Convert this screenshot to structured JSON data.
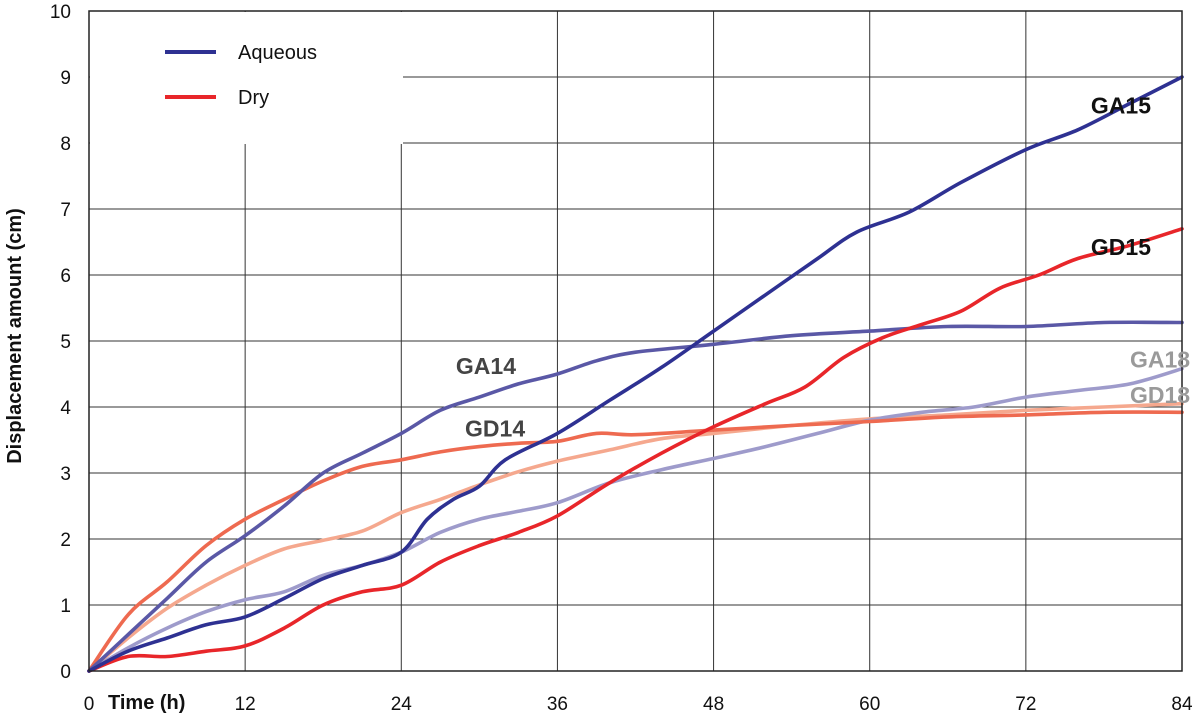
{
  "chart_data": {
    "type": "line",
    "xlabel": "Time (h)",
    "ylabel": "Displacement amount (cm)",
    "xlim": [
      0,
      84
    ],
    "ylim": [
      0,
      10
    ],
    "x_ticks": [
      0,
      12,
      24,
      36,
      48,
      60,
      72,
      84
    ],
    "y_ticks": [
      0,
      1,
      2,
      3,
      4,
      5,
      6,
      7,
      8,
      9,
      10
    ],
    "grid": true,
    "legend": {
      "position": "top-left",
      "entries": [
        {
          "label": "Aqueous",
          "color": "#2e3192"
        },
        {
          "label": "Dry",
          "color": "#e8262a"
        }
      ]
    },
    "series": [
      {
        "name": "GA15",
        "color": "#2e3192",
        "points": [
          [
            0,
            0
          ],
          [
            3,
            0.3
          ],
          [
            6,
            0.5
          ],
          [
            9,
            0.7
          ],
          [
            12,
            0.82
          ],
          [
            15,
            1.1
          ],
          [
            18,
            1.4
          ],
          [
            21,
            1.6
          ],
          [
            24,
            1.8
          ],
          [
            26,
            2.3
          ],
          [
            28,
            2.6
          ],
          [
            30,
            2.8
          ],
          [
            32,
            3.2
          ],
          [
            36,
            3.6
          ],
          [
            40,
            4.1
          ],
          [
            44,
            4.6
          ],
          [
            48,
            5.15
          ],
          [
            52,
            5.7
          ],
          [
            56,
            6.25
          ],
          [
            59,
            6.65
          ],
          [
            63,
            6.95
          ],
          [
            67,
            7.4
          ],
          [
            72,
            7.9
          ],
          [
            76,
            8.2
          ],
          [
            80,
            8.6
          ],
          [
            84,
            9.0
          ]
        ]
      },
      {
        "name": "GA14",
        "color": "#5a58a6",
        "points": [
          [
            0,
            0
          ],
          [
            3,
            0.55
          ],
          [
            6,
            1.1
          ],
          [
            9,
            1.65
          ],
          [
            12,
            2.05
          ],
          [
            15,
            2.5
          ],
          [
            18,
            3.0
          ],
          [
            21,
            3.3
          ],
          [
            24,
            3.6
          ],
          [
            27,
            3.95
          ],
          [
            30,
            4.15
          ],
          [
            33,
            4.35
          ],
          [
            36,
            4.5
          ],
          [
            39,
            4.7
          ],
          [
            42,
            4.83
          ],
          [
            48,
            4.95
          ],
          [
            54,
            5.08
          ],
          [
            60,
            5.15
          ],
          [
            66,
            5.22
          ],
          [
            72,
            5.22
          ],
          [
            78,
            5.28
          ],
          [
            84,
            5.28
          ]
        ]
      },
      {
        "name": "GA18",
        "color": "#9e9bcb",
        "points": [
          [
            0,
            0
          ],
          [
            3,
            0.35
          ],
          [
            6,
            0.65
          ],
          [
            9,
            0.9
          ],
          [
            12,
            1.08
          ],
          [
            15,
            1.2
          ],
          [
            18,
            1.45
          ],
          [
            21,
            1.6
          ],
          [
            24,
            1.8
          ],
          [
            27,
            2.1
          ],
          [
            30,
            2.3
          ],
          [
            33,
            2.42
          ],
          [
            36,
            2.55
          ],
          [
            40,
            2.85
          ],
          [
            44,
            3.05
          ],
          [
            48,
            3.22
          ],
          [
            52,
            3.4
          ],
          [
            56,
            3.6
          ],
          [
            60,
            3.8
          ],
          [
            64,
            3.92
          ],
          [
            68,
            4.0
          ],
          [
            72,
            4.15
          ],
          [
            76,
            4.25
          ],
          [
            80,
            4.35
          ],
          [
            84,
            4.58
          ]
        ]
      },
      {
        "name": "GD15",
        "color": "#e8262a",
        "points": [
          [
            0,
            0
          ],
          [
            3,
            0.22
          ],
          [
            6,
            0.22
          ],
          [
            9,
            0.3
          ],
          [
            12,
            0.38
          ],
          [
            15,
            0.65
          ],
          [
            18,
            1.0
          ],
          [
            21,
            1.2
          ],
          [
            24,
            1.3
          ],
          [
            27,
            1.65
          ],
          [
            30,
            1.9
          ],
          [
            33,
            2.1
          ],
          [
            36,
            2.35
          ],
          [
            40,
            2.85
          ],
          [
            44,
            3.3
          ],
          [
            48,
            3.7
          ],
          [
            52,
            4.05
          ],
          [
            55,
            4.3
          ],
          [
            58,
            4.75
          ],
          [
            61,
            5.05
          ],
          [
            64,
            5.25
          ],
          [
            67,
            5.45
          ],
          [
            70,
            5.8
          ],
          [
            73,
            6.0
          ],
          [
            76,
            6.25
          ],
          [
            80,
            6.45
          ],
          [
            84,
            6.7
          ]
        ]
      },
      {
        "name": "GD14",
        "color": "#ee6a50",
        "points": [
          [
            0,
            0
          ],
          [
            3,
            0.85
          ],
          [
            6,
            1.35
          ],
          [
            9,
            1.9
          ],
          [
            12,
            2.3
          ],
          [
            15,
            2.6
          ],
          [
            18,
            2.88
          ],
          [
            21,
            3.1
          ],
          [
            24,
            3.2
          ],
          [
            27,
            3.32
          ],
          [
            30,
            3.4
          ],
          [
            33,
            3.45
          ],
          [
            36,
            3.48
          ],
          [
            39,
            3.6
          ],
          [
            42,
            3.58
          ],
          [
            48,
            3.65
          ],
          [
            54,
            3.72
          ],
          [
            60,
            3.78
          ],
          [
            66,
            3.85
          ],
          [
            72,
            3.88
          ],
          [
            78,
            3.92
          ],
          [
            84,
            3.92
          ]
        ]
      },
      {
        "name": "GD18",
        "color": "#f5a88e",
        "points": [
          [
            0,
            0
          ],
          [
            3,
            0.5
          ],
          [
            6,
            0.95
          ],
          [
            9,
            1.3
          ],
          [
            12,
            1.6
          ],
          [
            15,
            1.85
          ],
          [
            18,
            1.98
          ],
          [
            21,
            2.12
          ],
          [
            24,
            2.4
          ],
          [
            27,
            2.6
          ],
          [
            30,
            2.82
          ],
          [
            33,
            3.02
          ],
          [
            36,
            3.18
          ],
          [
            40,
            3.35
          ],
          [
            44,
            3.52
          ],
          [
            48,
            3.6
          ],
          [
            54,
            3.72
          ],
          [
            60,
            3.82
          ],
          [
            66,
            3.88
          ],
          [
            72,
            3.95
          ],
          [
            78,
            4.0
          ],
          [
            84,
            4.05
          ]
        ]
      }
    ],
    "annotations": [
      {
        "text": "GA15",
        "x": 77,
        "y": 8.45,
        "color": "#111111"
      },
      {
        "text": "GD15",
        "x": 77,
        "y": 6.3,
        "color": "#111111"
      },
      {
        "text": "GA14",
        "x": 28.2,
        "y": 4.5,
        "color": "#444444"
      },
      {
        "text": "GD14",
        "x": 28.9,
        "y": 3.55,
        "color": "#444444"
      },
      {
        "text": "GA18",
        "x": 80,
        "y": 4.6,
        "color": "#9a9a9a"
      },
      {
        "text": "GD18",
        "x": 80,
        "y": 4.06,
        "color": "#9a9a9a"
      }
    ]
  }
}
